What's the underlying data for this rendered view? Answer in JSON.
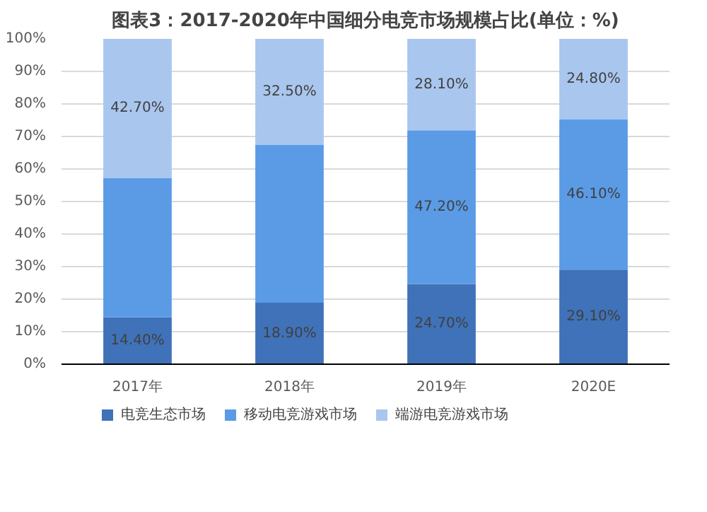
{
  "chart_data": {
    "type": "bar",
    "stacked": true,
    "title": "图表3：2017-2020年中国细分电竞市场规模占比(单位：%)",
    "categories": [
      "2017年",
      "2018年",
      "2019年",
      "2020E"
    ],
    "series": [
      {
        "name": "电竞生态市场",
        "color": "#3f72b8",
        "values": [
          14.4,
          18.9,
          24.7,
          29.1
        ],
        "value_labels": [
          "14.40%",
          "18.90%",
          "24.70%",
          "29.10%"
        ]
      },
      {
        "name": "移动电竞游戏市场",
        "color": "#5b9be6",
        "values": [
          42.9,
          48.6,
          47.2,
          46.1
        ],
        "value_labels": [
          null,
          null,
          "47.20%",
          "46.10%"
        ]
      },
      {
        "name": "端游电竞游戏市场",
        "color": "#a9c6ee",
        "values": [
          42.7,
          32.5,
          28.1,
          24.8
        ],
        "value_labels": [
          "42.70%",
          "32.50%",
          "28.10%",
          "24.80%"
        ]
      }
    ],
    "ylim": [
      0,
      100
    ],
    "yticks": [
      {
        "value": 0,
        "label": "0%"
      },
      {
        "value": 10,
        "label": "10%"
      },
      {
        "value": 20,
        "label": "20%"
      },
      {
        "value": 30,
        "label": "30%"
      },
      {
        "value": 40,
        "label": "40%"
      },
      {
        "value": 50,
        "label": "50%"
      },
      {
        "value": 60,
        "label": "60%"
      },
      {
        "value": 70,
        "label": "70%"
      },
      {
        "value": 80,
        "label": "80%"
      },
      {
        "value": 90,
        "label": "90%"
      },
      {
        "value": 100,
        "label": "100%"
      }
    ],
    "grid": "y",
    "legend": "bottom"
  }
}
